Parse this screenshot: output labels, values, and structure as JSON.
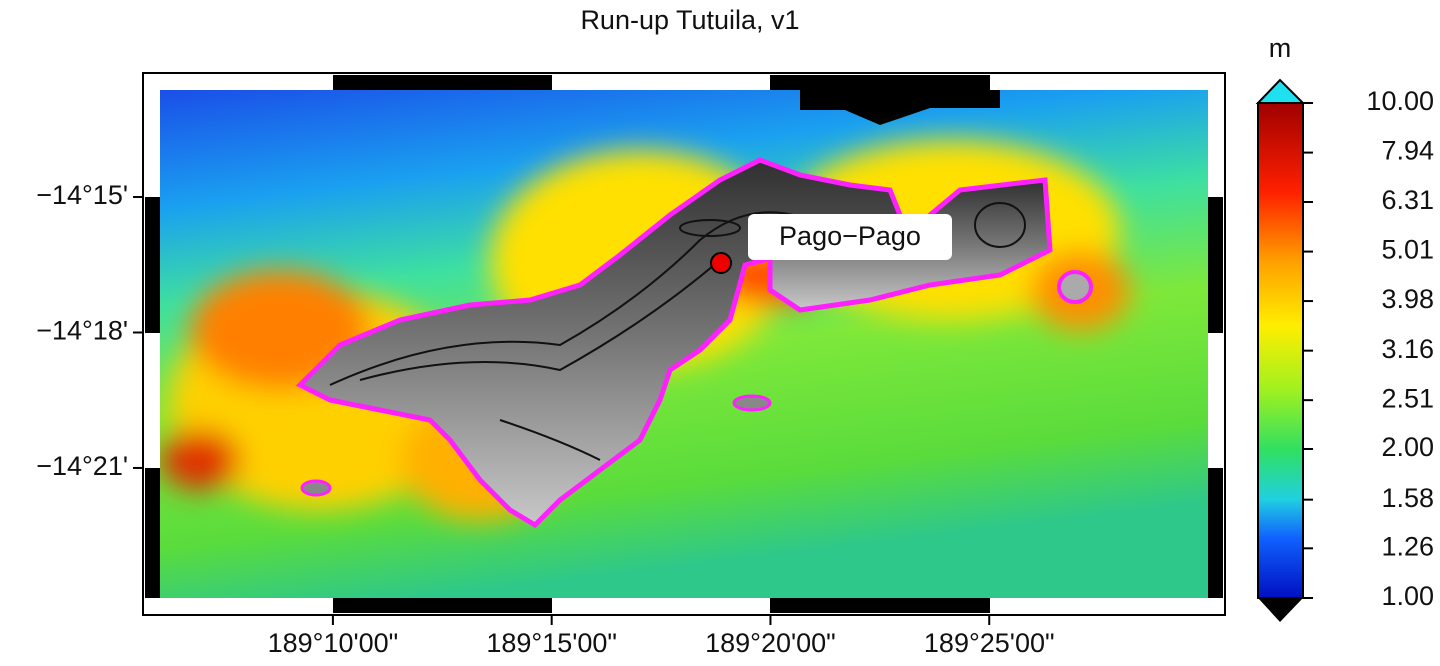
{
  "title": "Run-up Tutuila, v1",
  "map": {
    "xlim": [
      189.1008,
      189.5
    ],
    "ylim": [
      -14.398,
      -14.2105
    ],
    "xticks": [
      {
        "value": 189.16667,
        "label": "189°10'00\""
      },
      {
        "value": 189.25,
        "label": "189°15'00\""
      },
      {
        "value": 189.33333,
        "label": "189°20'00\""
      },
      {
        "value": 189.41667,
        "label": "189°25'00\""
      }
    ],
    "yticks": [
      {
        "value": -14.25,
        "label": "−14°15'"
      },
      {
        "value": -14.3,
        "label": "−14°18'"
      },
      {
        "value": -14.35,
        "label": "−14°21'"
      }
    ],
    "annotations": [
      {
        "label": "Pago−Pago"
      }
    ]
  },
  "colorbar": {
    "unit": "m",
    "log": true,
    "lim": [
      1,
      10
    ],
    "ticks": [
      {
        "value": 1,
        "label": "1.00"
      },
      {
        "value": 1.26,
        "label": "1.26"
      },
      {
        "value": 1.58,
        "label": "1.58"
      },
      {
        "value": 2,
        "label": "2.00"
      },
      {
        "value": 2.51,
        "label": "2.51"
      },
      {
        "value": 3.16,
        "label": "3.16"
      },
      {
        "value": 3.98,
        "label": "3.98"
      },
      {
        "value": 5.01,
        "label": "5.01"
      },
      {
        "value": 6.31,
        "label": "6.31"
      },
      {
        "value": 7.94,
        "label": "7.94"
      },
      {
        "value": 10,
        "label": "10.00"
      }
    ]
  }
}
